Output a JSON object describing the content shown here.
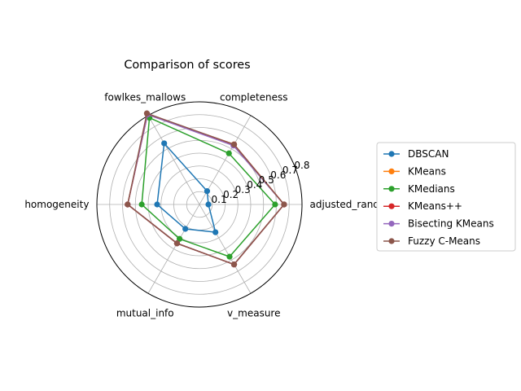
{
  "chart_data": {
    "type": "radar",
    "title": "Comparison of scores",
    "categories": [
      "adjusted_rand",
      "completeness",
      "fowlkes_mallows",
      "homogeneity",
      "mutual_info",
      "v_measure"
    ],
    "r_ticks": [
      "0.1",
      "0.2",
      "0.3",
      "0.4",
      "0.5",
      "0.6",
      "0.7",
      "0.8"
    ],
    "r_tick_values": [
      0.1,
      0.2,
      0.3,
      0.4,
      0.5,
      0.6,
      0.7,
      0.8
    ],
    "rlim": [
      0,
      0.8
    ],
    "grid": true,
    "legend_position": "right",
    "series": [
      {
        "name": "DBSCAN",
        "color": "#1f77b4",
        "values": [
          0.07,
          0.12,
          0.55,
          0.33,
          0.22,
          0.25
        ]
      },
      {
        "name": "KMeans",
        "color": "#ff7f0e",
        "values": [
          0.66,
          0.54,
          0.81,
          0.56,
          0.35,
          0.54
        ]
      },
      {
        "name": "KMedians",
        "color": "#2ca02c",
        "values": [
          0.59,
          0.46,
          0.78,
          0.45,
          0.31,
          0.47
        ]
      },
      {
        "name": "KMeans++",
        "color": "#d62728",
        "values": [
          0.66,
          0.54,
          0.81,
          0.56,
          0.35,
          0.54
        ]
      },
      {
        "name": "Bisecting KMeans",
        "color": "#9467bd",
        "values": [
          0.66,
          0.53,
          0.81,
          0.56,
          0.35,
          0.54
        ]
      },
      {
        "name": "Fuzzy C-Means",
        "color": "#8c564b",
        "values": [
          0.66,
          0.54,
          0.82,
          0.56,
          0.35,
          0.54
        ]
      }
    ]
  }
}
